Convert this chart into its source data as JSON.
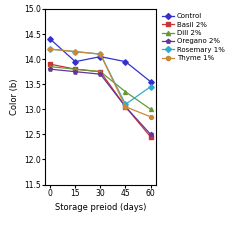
{
  "x": [
    0,
    15,
    30,
    45,
    60
  ],
  "series": {
    "Control": [
      14.4,
      13.95,
      14.05,
      13.95,
      13.55
    ],
    "Basil 2%": [
      13.9,
      13.8,
      13.75,
      13.05,
      12.45
    ],
    "Dill 2%": [
      13.85,
      13.8,
      13.75,
      13.35,
      13.0
    ],
    "Oregano 2%": [
      13.8,
      13.75,
      13.7,
      13.05,
      12.5
    ],
    "Rosemary 1%": [
      14.2,
      14.15,
      14.1,
      13.1,
      13.45
    ],
    "Thyme 1%": [
      14.2,
      14.15,
      14.1,
      13.05,
      12.85
    ]
  },
  "colors": {
    "Control": "#3333cc",
    "Basil 2%": "#cc3333",
    "Dill 2%": "#669933",
    "Oregano 2%": "#663399",
    "Rosemary 1%": "#33aacc",
    "Thyme 1%": "#cc8833"
  },
  "markers": {
    "Control": "D",
    "Basil 2%": "s",
    "Dill 2%": "^",
    "Oregano 2%": "p",
    "Rosemary 1%": "D",
    "Thyme 1%": "o"
  },
  "xlabel": "Storage preiod (days)",
  "ylabel": "Color (b)",
  "ylim": [
    11.5,
    15.0
  ],
  "yticks": [
    11.5,
    12.0,
    12.5,
    13.0,
    13.5,
    14.0,
    14.5,
    15.0
  ],
  "xticks": [
    0,
    15,
    30,
    45,
    60
  ],
  "legend_order": [
    "Control",
    "Basil 2%",
    "Dill 2%",
    "Oregano 2%",
    "Rosemary 1%",
    "Thyme 1%"
  ]
}
